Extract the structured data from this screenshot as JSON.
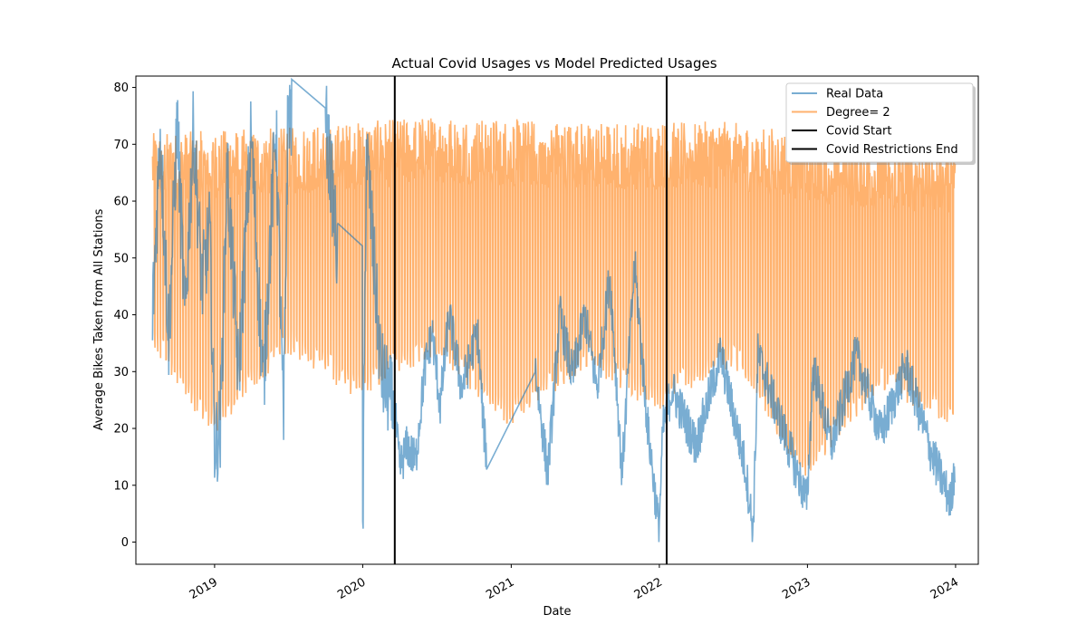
{
  "chart_data": {
    "type": "line",
    "title": "Actual Covid Usages vs Model Predicted Usages",
    "xlabel": "Date",
    "ylabel": "Average Bikes Taken from All Stations",
    "xlim": [
      "2018-06-21",
      "2024-02-26"
    ],
    "ylim": [
      -3.9,
      82.0
    ],
    "x_ticks": [
      "2019",
      "2020",
      "2021",
      "2022",
      "2023",
      "2024"
    ],
    "y_ticks": [
      0,
      10,
      20,
      30,
      40,
      50,
      60,
      70,
      80
    ],
    "legend_position": "top-right",
    "colors": {
      "real": "#1f77b4",
      "model": "#ff7f0e",
      "vline": "#000000"
    },
    "series": [
      {
        "name": "Real Data",
        "style": "line",
        "alpha": 0.6,
        "date_range": [
          "2018-08-01",
          "2023-12-31"
        ],
        "points": [
          [
            "2018-08-01",
            40
          ],
          [
            "2018-08-20",
            72
          ],
          [
            "2018-09-10",
            36
          ],
          [
            "2018-10-01",
            74
          ],
          [
            "2018-10-20",
            39
          ],
          [
            "2018-11-10",
            73
          ],
          [
            "2018-12-01",
            45
          ],
          [
            "2018-12-20",
            55
          ],
          [
            "2019-01-01",
            17
          ],
          [
            "2019-01-15",
            20
          ],
          [
            "2019-02-01",
            66
          ],
          [
            "2019-03-01",
            29
          ],
          [
            "2019-04-01",
            72
          ],
          [
            "2019-05-01",
            27
          ],
          [
            "2019-06-01",
            74
          ],
          [
            "2019-06-20",
            20
          ],
          [
            "2019-07-01",
            77
          ],
          [
            "2019-07-10",
            74
          ],
          [
            "2019-10-01",
            75
          ],
          [
            "2019-10-20",
            60
          ],
          [
            "2019-11-01",
            49
          ],
          [
            "2019-12-31",
            52
          ],
          [
            "2020-01-01",
            0
          ],
          [
            "2020-01-10",
            70
          ],
          [
            "2020-02-15",
            30
          ],
          [
            "2020-03-20",
            23
          ],
          [
            "2020-04-01",
            13
          ],
          [
            "2020-04-20",
            17
          ],
          [
            "2020-05-10",
            14
          ],
          [
            "2020-06-01",
            30
          ],
          [
            "2020-06-20",
            37
          ],
          [
            "2020-07-10",
            24
          ],
          [
            "2020-08-01",
            40
          ],
          [
            "2020-09-01",
            27
          ],
          [
            "2020-10-10",
            37
          ],
          [
            "2020-10-25",
            20
          ],
          [
            "2020-11-01",
            15.5
          ],
          [
            "2021-03-01",
            31
          ],
          [
            "2021-03-15",
            22
          ],
          [
            "2021-04-01",
            12
          ],
          [
            "2021-05-01",
            40
          ],
          [
            "2021-06-01",
            29
          ],
          [
            "2021-07-01",
            40
          ],
          [
            "2021-08-01",
            27
          ],
          [
            "2021-09-01",
            47
          ],
          [
            "2021-10-01",
            12
          ],
          [
            "2021-11-01",
            49
          ],
          [
            "2021-12-01",
            22
          ],
          [
            "2021-12-31",
            2
          ],
          [
            "2022-01-10",
            20
          ],
          [
            "2022-02-01",
            27
          ],
          [
            "2022-04-01",
            17
          ],
          [
            "2022-06-01",
            33
          ],
          [
            "2022-08-01",
            13
          ],
          [
            "2022-08-20",
            2
          ],
          [
            "2022-09-01",
            33
          ],
          [
            "2022-11-01",
            20
          ],
          [
            "2022-12-31",
            7
          ],
          [
            "2023-01-15",
            31
          ],
          [
            "2023-03-01",
            17
          ],
          [
            "2023-05-01",
            33
          ],
          [
            "2023-07-01",
            19
          ],
          [
            "2023-09-01",
            31
          ],
          [
            "2023-11-01",
            16
          ],
          [
            "2023-12-20",
            7
          ],
          [
            "2023-12-31",
            14
          ]
        ]
      },
      {
        "name": "Degree= 2",
        "style": "line",
        "alpha": 0.6,
        "date_range": [
          "2018-08-01",
          "2023-12-31"
        ],
        "weekly_pattern": "weekday highs, weekend lows",
        "seasonal_highs": [
          [
            "2018-08-01",
            72
          ],
          [
            "2019-07-01",
            73
          ],
          [
            "2020-07-01",
            75
          ],
          [
            "2021-07-01",
            74
          ],
          [
            "2022-07-01",
            74
          ],
          [
            "2023-07-01",
            70
          ]
        ],
        "seasonal_lows": [
          [
            "2018-08-01",
            34
          ],
          [
            "2018-12-25",
            18
          ],
          [
            "2019-07-01",
            33
          ],
          [
            "2019-12-25",
            25
          ],
          [
            "2020-07-01",
            33
          ],
          [
            "2020-12-25",
            20
          ],
          [
            "2021-07-01",
            30
          ],
          [
            "2021-12-25",
            23
          ],
          [
            "2022-07-01",
            31
          ],
          [
            "2022-12-25",
            11
          ],
          [
            "2023-07-01",
            27
          ],
          [
            "2023-12-25",
            20
          ]
        ]
      },
      {
        "name": "Covid Start",
        "style": "vline",
        "x": "2020-03-20"
      },
      {
        "name": "Covid Restrictions End",
        "style": "vline",
        "x": "2022-01-19"
      }
    ]
  }
}
